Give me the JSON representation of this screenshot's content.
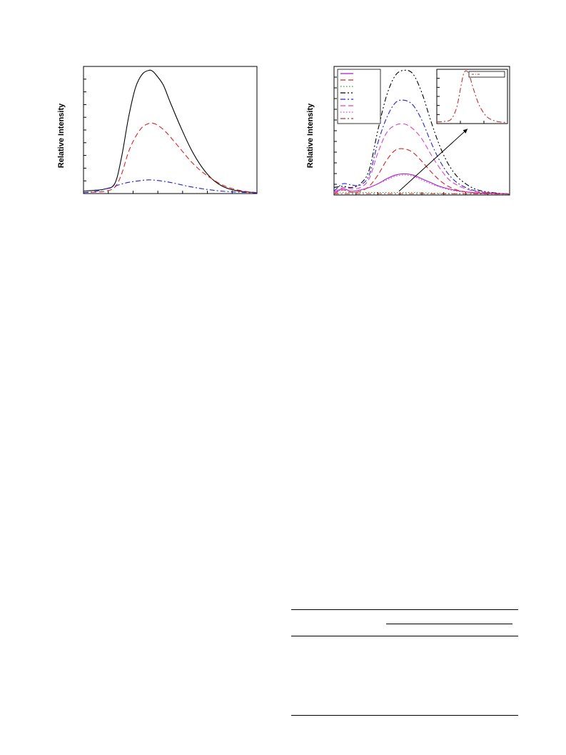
{
  "figures": [
    {
      "chart_data": {
        "type": "line",
        "ylabel": "Relative Intensity",
        "xlim": [
          0,
          100
        ],
        "ylim": [
          0,
          100
        ],
        "series": [
          {
            "style": "solid",
            "color": "#000000",
            "x": [
              0,
              6,
              12,
              18,
              22,
              26,
              30,
              34,
              38,
              40,
              42,
              46,
              50,
              56,
              62,
              68,
              74,
              80,
              86,
              92,
              100
            ],
            "y": [
              2,
              2.6,
              3.6,
              8,
              30,
              62,
              86,
              97,
              100,
              99,
              96,
              88,
              74,
              54,
              36,
              22,
              12,
              6,
              3,
              1.6,
              0.8
            ]
          },
          {
            "style": "dashed",
            "color": "#e02020",
            "x": [
              0,
              6,
              12,
              18,
              22,
              26,
              30,
              34,
              38,
              40,
              42,
              46,
              50,
              56,
              62,
              68,
              74,
              80,
              86,
              92,
              100
            ],
            "y": [
              0.8,
              1.2,
              1.8,
              5,
              16,
              34,
              46,
              54,
              57,
              57,
              56,
              52,
              46,
              36,
              26,
              18,
              12,
              7,
              4,
              2,
              0.8
            ]
          },
          {
            "style": "dashdot",
            "color": "#2020e0",
            "x": [
              0,
              6,
              12,
              18,
              24,
              30,
              36,
              40,
              46,
              52,
              60,
              68,
              76,
              84,
              92,
              100
            ],
            "y": [
              0.8,
              1.5,
              3.5,
              6,
              8.5,
              10,
              11,
              11,
              10,
              8.5,
              6,
              4,
              2.5,
              1.5,
              1,
              0.5
            ]
          }
        ]
      }
    },
    {
      "chart_data": {
        "type": "line",
        "ylabel": "Relative Intensity",
        "xlim": [
          0,
          100
        ],
        "ylim": [
          0,
          100
        ],
        "legend_position": "top-left",
        "series": [
          {
            "style": "solid",
            "color": "#a020c0",
            "x": [
              0,
              5,
              10,
              15,
              20,
              25,
              30,
              35,
              40,
              45,
              50,
              55,
              60,
              65,
              70,
              75,
              80,
              85,
              90,
              95,
              100
            ],
            "y": [
              2,
              5,
              3,
              4,
              6,
              9,
              13,
              16,
              17,
              16,
              13,
              10,
              7,
              5,
              3.5,
              2.5,
              1.8,
              1.4,
              1.2,
              1,
              0.8
            ]
          },
          {
            "style": "dashed",
            "color": "#e02020",
            "x": [
              0,
              5,
              10,
              15,
              20,
              25,
              30,
              35,
              40,
              45,
              50,
              55,
              60,
              65,
              70,
              75,
              80,
              85,
              90,
              95,
              100
            ],
            "y": [
              1,
              4,
              2,
              3,
              7,
              16,
              28,
              36,
              37,
              34,
              27,
              19,
              12,
              7,
              4,
              2.5,
              1.8,
              1.4,
              1.2,
              1,
              0.8
            ]
          },
          {
            "style": "dotted",
            "color": "#30a030",
            "x": [
              0,
              5,
              10,
              15,
              20,
              25,
              30,
              35,
              40,
              45,
              50,
              55,
              60,
              65,
              70,
              75,
              80,
              85,
              90,
              95,
              100
            ],
            "y": [
              1,
              2,
              2,
              2,
              2,
              2,
              2,
              2,
              2,
              2,
              1.8,
              1.6,
              1.4,
              1.2,
              1.1,
              1,
              1,
              0.9,
              0.9,
              0.8,
              0.8
            ]
          },
          {
            "style": "dashdotdot",
            "color": "#000000",
            "x": [
              0,
              5,
              10,
              15,
              20,
              25,
              30,
              35,
              40,
              45,
              50,
              55,
              60,
              65,
              70,
              75,
              80,
              85,
              90,
              95,
              100
            ],
            "y": [
              6,
              7,
              6,
              9,
              20,
              52,
              80,
              96,
              100,
              97,
              82,
              60,
              40,
              25,
              15,
              9,
              5,
              3,
              2,
              1.3,
              0.8
            ]
          },
          {
            "style": "dashdot",
            "color": "#2020e0",
            "x": [
              0,
              5,
              10,
              15,
              20,
              25,
              30,
              35,
              40,
              45,
              50,
              55,
              60,
              65,
              70,
              75,
              80,
              85,
              90,
              95,
              100
            ],
            "y": [
              3,
              9,
              8,
              8,
              16,
              42,
              62,
              74,
              76,
              72,
              60,
              43,
              28,
              17,
              10,
              6,
              3.5,
              2.2,
              1.6,
              1.2,
              0.8
            ]
          },
          {
            "style": "dashed",
            "color": "#e040c0",
            "x": [
              0,
              5,
              10,
              15,
              20,
              25,
              30,
              35,
              40,
              45,
              50,
              55,
              60,
              65,
              70,
              75,
              80,
              85,
              90,
              95,
              100
            ],
            "y": [
              2,
              6,
              5,
              6,
              13,
              34,
              50,
              56,
              57,
              53,
              45,
              33,
              22,
              13,
              8,
              5,
              3,
              2,
              1.5,
              1.1,
              0.8
            ]
          },
          {
            "style": "dotted",
            "color": "#e040e0",
            "x": [
              0,
              5,
              10,
              15,
              20,
              25,
              30,
              35,
              40,
              45,
              50,
              55,
              60,
              65,
              70,
              75,
              80,
              85,
              90,
              95,
              100
            ],
            "y": [
              1.5,
              4,
              3,
              4,
              6,
              9,
              12,
              15,
              16,
              15,
              12,
              9,
              6.5,
              4.5,
              3,
              2.2,
              1.6,
              1.3,
              1.1,
              0.9,
              0.8
            ]
          },
          {
            "style": "dashdot",
            "color": "#c03030",
            "x": [
              0,
              20,
              40,
              60,
              80,
              100
            ],
            "y": [
              1,
              1,
              1,
              1,
              0.9,
              0.8
            ]
          }
        ],
        "inset": {
          "type": "line",
          "series": [
            {
              "style": "dashdot",
              "color": "#c03030",
              "x": [
                0,
                10,
                20,
                28,
                34,
                38,
                42,
                46,
                52,
                60,
                70,
                80,
                90,
                100
              ],
              "y": [
                3,
                4,
                8,
                30,
                70,
                95,
                100,
                92,
                65,
                35,
                14,
                6,
                3,
                2
              ]
            }
          ]
        }
      }
    }
  ],
  "table": {
    "rows": []
  }
}
